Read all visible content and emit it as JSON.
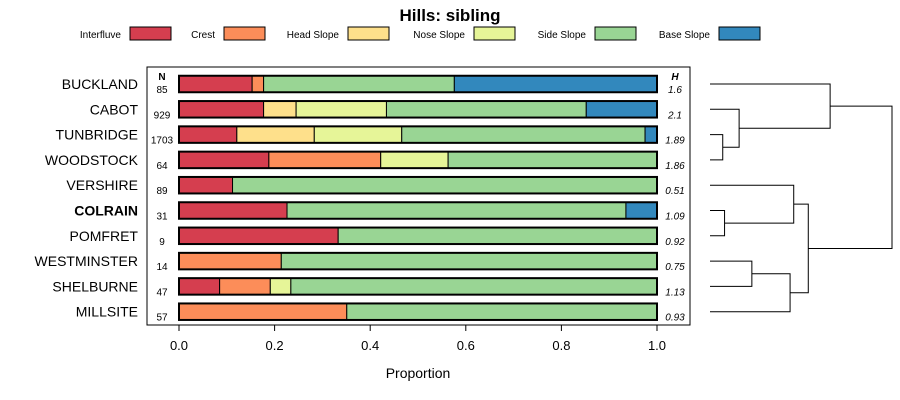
{
  "chart_data": {
    "type": "bar",
    "orientation": "horizontal-stacked",
    "title": "Hills: sibling",
    "xlabel": "Proportion",
    "ylabel": "",
    "xlim": [
      0,
      1
    ],
    "xticks": [
      0.0,
      0.2,
      0.4,
      0.6,
      0.8,
      1.0
    ],
    "xtick_labels": [
      "0.0",
      "0.2",
      "0.4",
      "0.6",
      "0.8",
      "1.0"
    ],
    "n_header": "N",
    "h_header": "H",
    "legend": [
      {
        "name": "Interfluve",
        "color": "#D53E4F"
      },
      {
        "name": "Crest",
        "color": "#FC8D59"
      },
      {
        "name": "Head Slope",
        "color": "#FEE08B"
      },
      {
        "name": "Nose Slope",
        "color": "#E6F598"
      },
      {
        "name": "Side Slope",
        "color": "#99D594"
      },
      {
        "name": "Base Slope",
        "color": "#3288BD"
      }
    ],
    "categories": [
      "BUCKLAND",
      "CABOT",
      "TUNBRIDGE",
      "WOODSTOCK",
      "VERSHIRE",
      "COLRAIN",
      "POMFRET",
      "WESTMINSTER",
      "SHELBURNE",
      "MILLSITE"
    ],
    "highlight": "COLRAIN",
    "n": [
      "85",
      "929",
      "1703",
      "64",
      "89",
      "31",
      "9",
      "14",
      "47",
      "57"
    ],
    "h": [
      "1.6",
      "2.1",
      "1.89",
      "1.86",
      "0.51",
      "1.09",
      "0.92",
      "0.75",
      "1.13",
      "0.93"
    ],
    "series": [
      {
        "name": "Interfluve",
        "values": [
          0.153,
          0.177,
          0.121,
          0.188,
          0.112,
          0.226,
          0.333,
          0.0,
          0.085,
          0.0
        ]
      },
      {
        "name": "Crest",
        "values": [
          0.024,
          0.0,
          0.0,
          0.234,
          0.0,
          0.0,
          0.0,
          0.214,
          0.106,
          0.351
        ]
      },
      {
        "name": "Head Slope",
        "values": [
          0.0,
          0.068,
          0.162,
          0.0,
          0.0,
          0.0,
          0.0,
          0.0,
          0.0,
          0.0
        ]
      },
      {
        "name": "Nose Slope",
        "values": [
          0.0,
          0.189,
          0.183,
          0.141,
          0.0,
          0.0,
          0.0,
          0.0,
          0.043,
          0.0
        ]
      },
      {
        "name": "Side Slope",
        "values": [
          0.399,
          0.418,
          0.509,
          0.437,
          0.888,
          0.709,
          0.667,
          0.786,
          0.766,
          0.649
        ]
      },
      {
        "name": "Base Slope",
        "values": [
          0.424,
          0.148,
          0.025,
          0.0,
          0.0,
          0.065,
          0.0,
          0.0,
          0.0,
          0.0
        ]
      }
    ],
    "dendrogram": {
      "description": "hierarchical clustering of categories (merge heights, larger = more dissimilar)",
      "merges": [
        {
          "a": "TUNBRIDGE",
          "b": "WOODSTOCK",
          "height": 0.07
        },
        {
          "a": "CABOT",
          "b": [
            "TUNBRIDGE",
            "WOODSTOCK"
          ],
          "height": 0.16
        },
        {
          "a": "BUCKLAND",
          "b": [
            "CABOT",
            "TUNBRIDGE",
            "WOODSTOCK"
          ],
          "height": 0.66
        },
        {
          "a": "COLRAIN",
          "b": "POMFRET",
          "height": 0.08
        },
        {
          "a": "WESTMINSTER",
          "b": "SHELBURNE",
          "height": 0.23
        },
        {
          "a": [
            "WESTMINSTER",
            "SHELBURNE"
          ],
          "b": "MILLSITE",
          "height": 0.44
        },
        {
          "a": "VERSHIRE",
          "b": [
            "COLRAIN",
            "POMFRET"
          ],
          "height": 0.46
        },
        {
          "a": [
            "VERSHIRE",
            "COLRAIN",
            "POMFRET"
          ],
          "b": [
            "WESTMINSTER",
            "SHELBURNE",
            "MILLSITE"
          ],
          "height": 0.54
        },
        {
          "a": [
            "BUCKLAND",
            "CABOT",
            "TUNBRIDGE",
            "WOODSTOCK"
          ],
          "b": [
            "VERSHIRE",
            "COLRAIN",
            "POMFRET",
            "WESTMINSTER",
            "SHELBURNE",
            "MILLSITE"
          ],
          "height": 1.0
        }
      ]
    }
  }
}
